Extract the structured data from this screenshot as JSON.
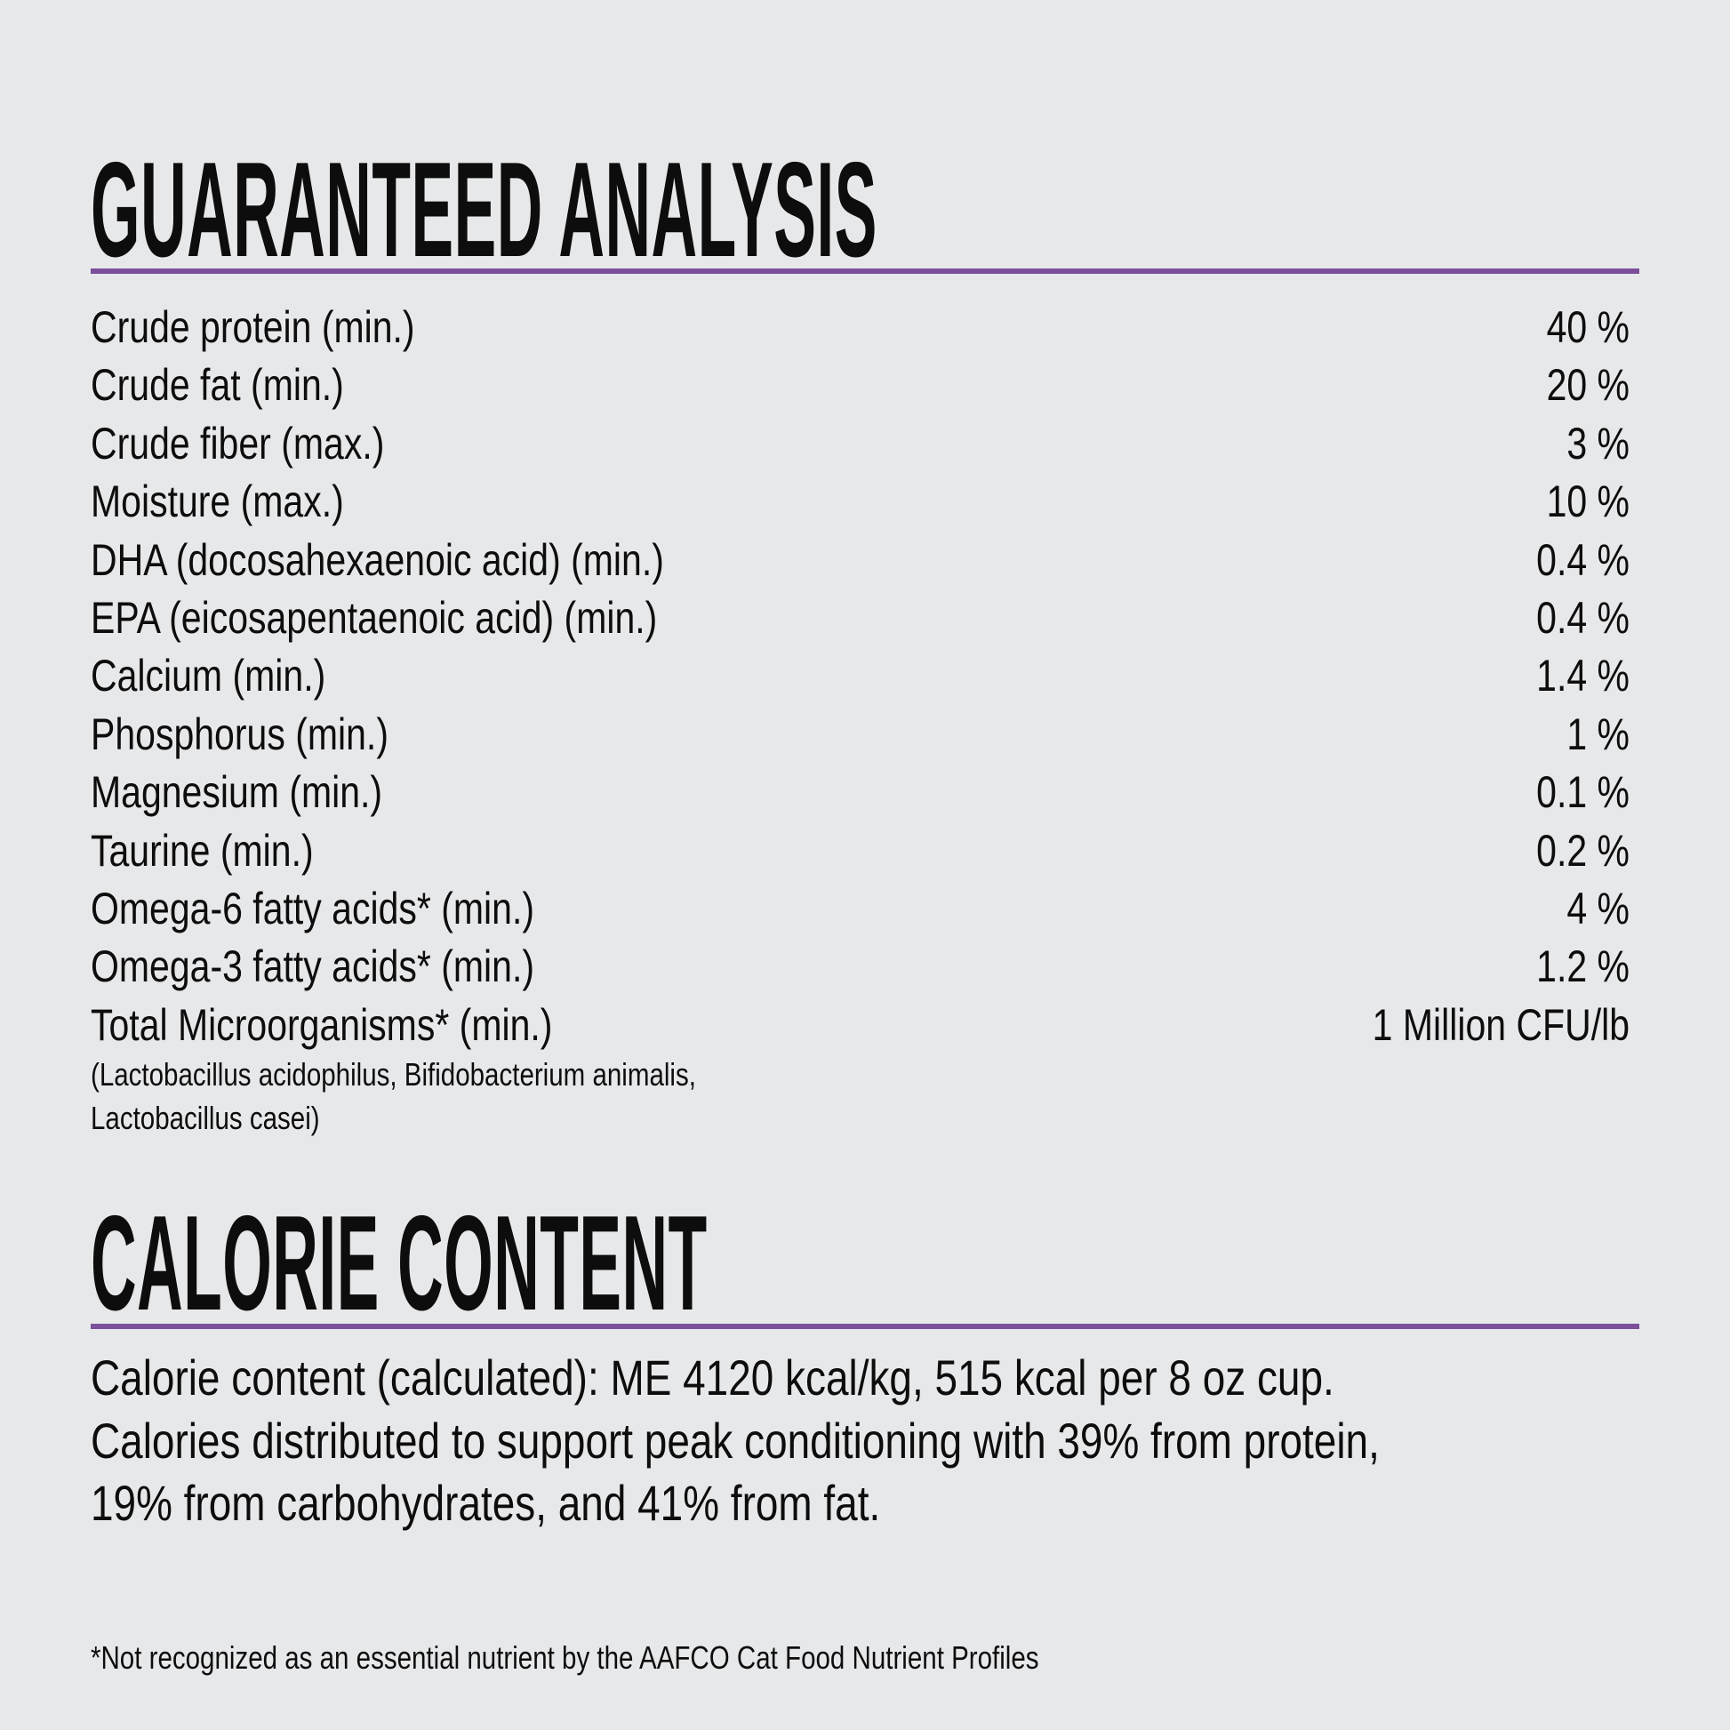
{
  "colors": {
    "accent_rule": "#7b4f9a",
    "background": "#e7e8ea",
    "text": "#0d0d0d"
  },
  "guaranteed_analysis": {
    "title": "GUARANTEED ANALYSIS",
    "rows": [
      {
        "label": "Crude protein (min.)",
        "value": "40 %"
      },
      {
        "label": "Crude fat (min.)",
        "value": "20 %"
      },
      {
        "label": "Crude fiber (max.)",
        "value": "3 %"
      },
      {
        "label": "Moisture (max.)",
        "value": "10 %"
      },
      {
        "label": "DHA (docosahexaenoic acid) (min.)",
        "value": "0.4 %"
      },
      {
        "label": "EPA (eicosapentaenoic acid) (min.)",
        "value": "0.4 %"
      },
      {
        "label": "Calcium (min.)",
        "value": "1.4 %"
      },
      {
        "label": "Phosphorus (min.)",
        "value": "1 %"
      },
      {
        "label": "Magnesium (min.)",
        "value": "0.1 %"
      },
      {
        "label": "Taurine (min.)",
        "value": "0.2 %"
      },
      {
        "label": "Omega-6 fatty acids* (min.)",
        "value": "4 %"
      },
      {
        "label": "Omega-3 fatty acids* (min.)",
        "value": "1.2 %"
      },
      {
        "label": "Total Microorganisms* (min.)",
        "value": "1 Million CFU/lb"
      }
    ],
    "microorganisms_note_line1": "(Lactobacillus acidophilus, Bifidobacterium animalis,",
    "microorganisms_note_line2": "Lactobacillus casei)"
  },
  "calorie_content": {
    "title": "CALORIE CONTENT",
    "line1": "Calorie content (calculated): ME 4120 kcal/kg, 515 kcal per 8 oz cup.",
    "line2": "Calories distributed to support peak conditioning with 39% from protein,",
    "line3": "19% from carbohydrates, and 41% from fat."
  },
  "footnote": "*Not recognized as an essential nutrient by the AAFCO Cat Food Nutrient Profiles"
}
